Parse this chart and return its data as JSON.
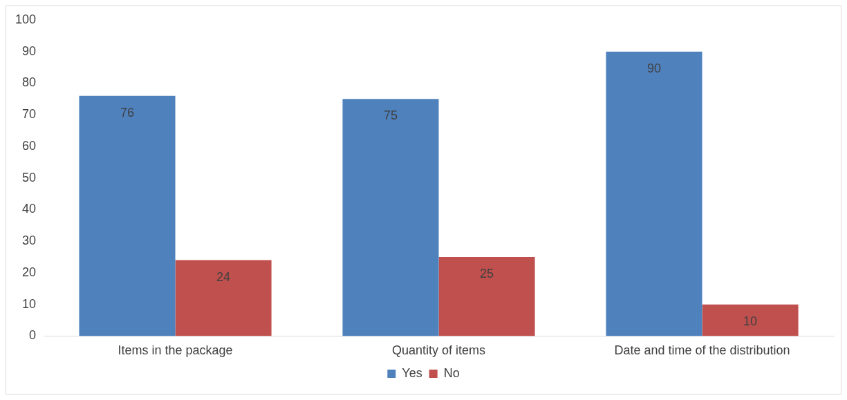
{
  "chart_data": {
    "type": "bar",
    "categories": [
      "Items in the package",
      "Quantity of items",
      "Date and time of the distribution"
    ],
    "series": [
      {
        "name": "Yes",
        "color": "#4f81bd",
        "values": [
          76,
          75,
          90
        ]
      },
      {
        "name": "No",
        "color": "#c0504d",
        "values": [
          24,
          25,
          10
        ]
      }
    ],
    "ylim": [
      0,
      100
    ],
    "yticks": [
      0,
      10,
      20,
      30,
      40,
      50,
      60,
      70,
      80,
      90,
      100
    ],
    "grid": false,
    "legend": "bottom",
    "data_labels": true
  }
}
